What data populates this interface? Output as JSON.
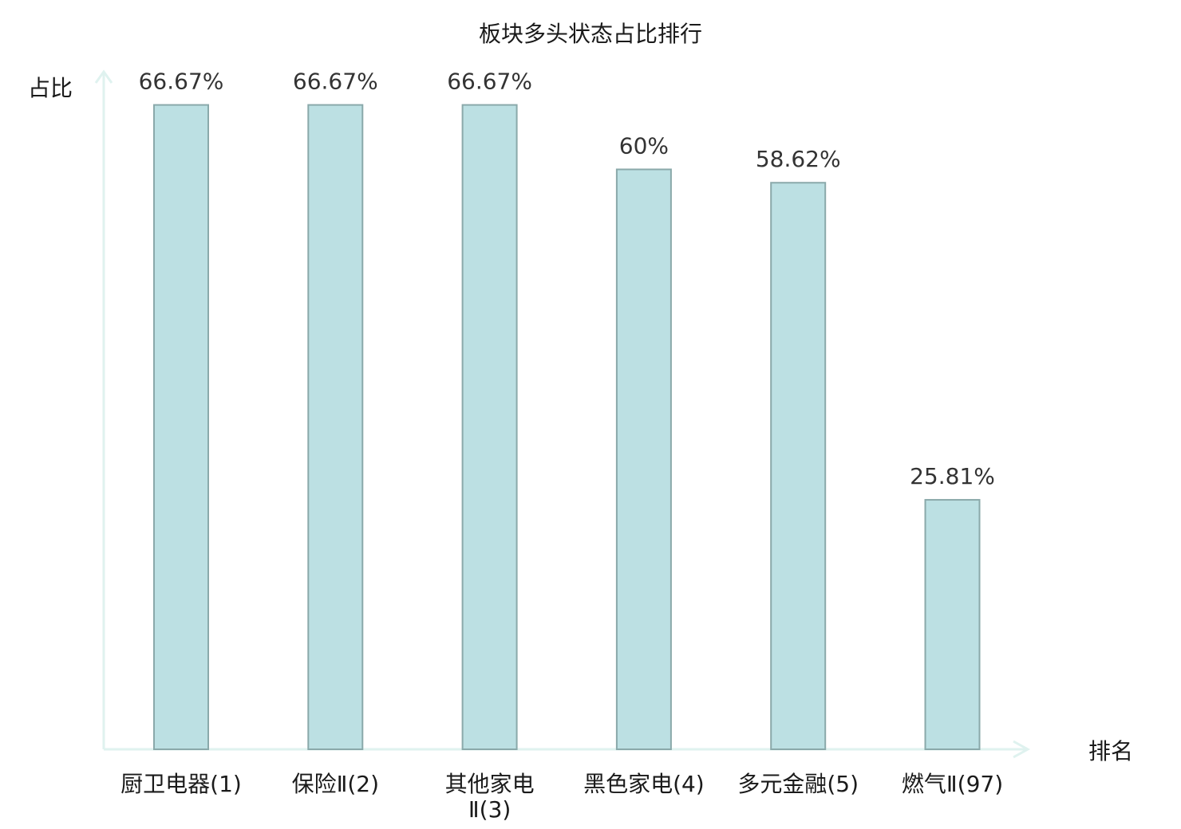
{
  "chart_data": {
    "type": "bar",
    "title": "板块多头状态占比排行",
    "xlabel": "排名",
    "ylabel": "占比",
    "ylim": [
      0,
      100
    ],
    "grid": false,
    "legend": "none",
    "categories": [
      [
        "厨卫电器(1)"
      ],
      [
        "保险Ⅱ(2)"
      ],
      [
        "其他家电",
        "Ⅱ(3)"
      ],
      [
        "黑色家电(4)"
      ],
      [
        "多元金融(5)"
      ],
      [
        "燃气Ⅱ(97)"
      ]
    ],
    "values": [
      66.67,
      66.67,
      66.67,
      60,
      58.62,
      25.81
    ],
    "value_labels": [
      "66.67%",
      "66.67%",
      "66.67%",
      "60%",
      "58.62%",
      "25.81%"
    ],
    "highlight_index": 5,
    "colors": {
      "bar_fill": "#bce0e3",
      "bar_stroke": "#8aa9aa",
      "axis": "#dff2ef",
      "highlight_text": "#e02020",
      "text": "#1a1a1a"
    }
  }
}
